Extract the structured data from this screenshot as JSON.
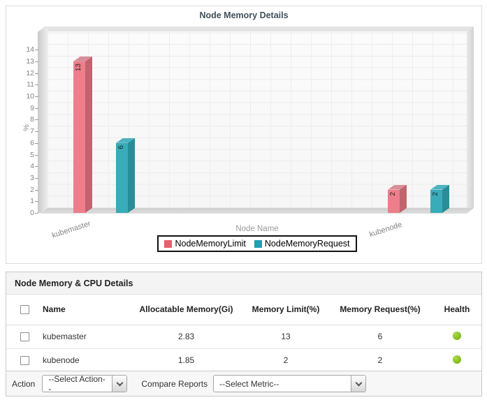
{
  "chart": {
    "title": "Node Memory Details",
    "y_axis_title": "%",
    "x_axis_title": "Node Name",
    "legend": [
      {
        "label": "NodeMemoryLimit",
        "color": "#e85f6f"
      },
      {
        "label": "NodeMemoryRequest",
        "color": "#1ba2b2"
      }
    ]
  },
  "chart_data": {
    "type": "bar",
    "title": "Node Memory Details",
    "xlabel": "Node Name",
    "ylabel": "%",
    "ylim": [
      0,
      14
    ],
    "y_tick_step": 1,
    "grid": true,
    "legend_position": "bottom",
    "categories": [
      "kubemaster",
      "kubenode"
    ],
    "series": [
      {
        "name": "NodeMemoryLimit",
        "values": [
          13,
          2
        ],
        "color": "#ee7e8b",
        "side_color": "#c2636f",
        "top_color": "#d88e98"
      },
      {
        "name": "NodeMemoryRequest",
        "values": [
          6,
          2
        ],
        "color": "#39abb9",
        "side_color": "#2a8c99",
        "top_color": "#4db3c0"
      }
    ]
  },
  "table": {
    "title": "Node Memory & CPU Details",
    "columns": [
      "Name",
      "Allocatable Memory(Gi)",
      "Memory Limit(%)",
      "Memory Request(%)",
      "Health"
    ],
    "rows": [
      {
        "name": "kubemaster",
        "allocatable": "2.83",
        "limit": "13",
        "request": "6",
        "health": "green"
      },
      {
        "name": "kubenode",
        "allocatable": "1.85",
        "limit": "2",
        "request": "2",
        "health": "green"
      }
    ],
    "health_color": "#7cb80e"
  },
  "actions": {
    "action_label": "Action",
    "action_selected": "--Select Action--",
    "compare_label": "Compare Reports",
    "compare_selected": "--Select Metric--"
  }
}
